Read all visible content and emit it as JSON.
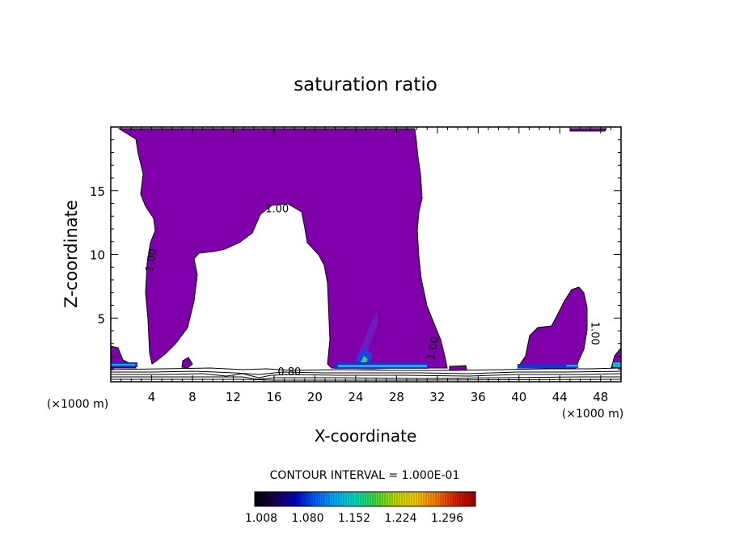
{
  "chart_data": {
    "type": "contour",
    "title": "saturation ratio",
    "xlabel": "X-coordinate",
    "ylabel": "Z-coordinate",
    "x_unit": "(×1000 m)",
    "xlim": [
      0,
      50
    ],
    "ylim": [
      0,
      20
    ],
    "x_ticks": [
      4,
      8,
      12,
      16,
      20,
      24,
      28,
      32,
      36,
      40,
      44,
      48
    ],
    "y_ticks": [
      5,
      10,
      15
    ],
    "contour_interval_label": "CONTOUR INTERVAL = 1.000E-01",
    "contour_labels": [
      {
        "text": "1.00",
        "x": 16.3,
        "z": 13.3
      },
      {
        "text": "1.00",
        "x": 4.3,
        "z": 9.5
      },
      {
        "text": "1.00",
        "x": 31.9,
        "z": 2.6
      },
      {
        "text": "1.00",
        "x": 47.1,
        "z": 3.8
      },
      {
        "text": "0.80",
        "x": 17.5,
        "z": 0.5
      }
    ],
    "fill_color": "#7f00aa",
    "colorbar": {
      "labels": [
        "1.008",
        "1.080",
        "1.152",
        "1.224",
        "1.296"
      ],
      "colors": [
        "#000000",
        "#1a0050",
        "#0000c0",
        "#0060ff",
        "#00b0ff",
        "#00e0c0",
        "#40e040",
        "#c0e000",
        "#ffd000",
        "#ff8000",
        "#e02000",
        "#a00000"
      ]
    }
  }
}
